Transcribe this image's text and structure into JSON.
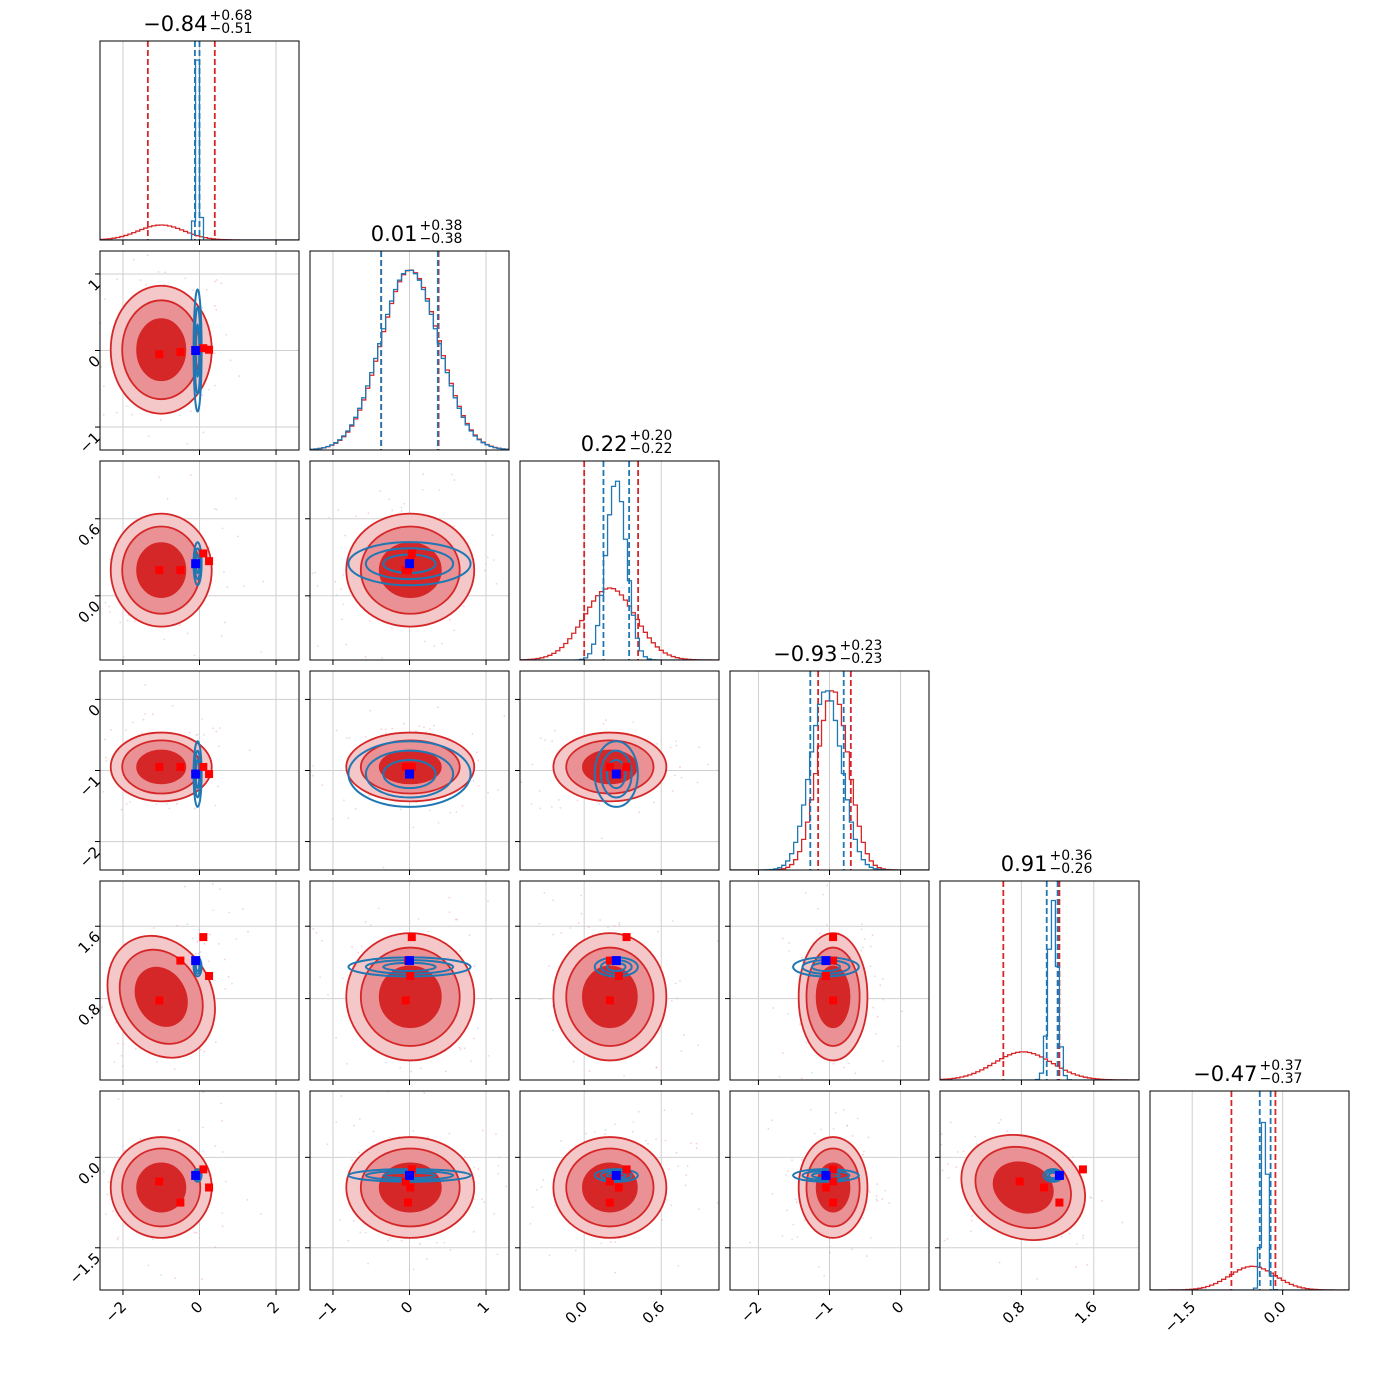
{
  "colors": {
    "red": "#d62728",
    "red_fill": [
      "#f4c7c8",
      "#e99194",
      "#d62728"
    ],
    "blue": "#1f77b4",
    "truth_red": "#ff0000",
    "truth_blue": "#0000ff",
    "grid": "#cfcfcf"
  },
  "chart_data": {
    "type": "corner",
    "n_params": 6,
    "titles": [
      {
        "value": "−0.84",
        "plus": "+0.68",
        "minus": "−0.51"
      },
      {
        "value": "0.01",
        "plus": "+0.38",
        "minus": "−0.38"
      },
      {
        "value": "0.22",
        "plus": "+0.20",
        "minus": "−0.22"
      },
      {
        "value": "−0.93",
        "plus": "+0.23",
        "minus": "−0.23"
      },
      {
        "value": "0.91",
        "plus": "+0.36",
        "minus": "−0.26"
      },
      {
        "value": "−0.47",
        "plus": "+0.37",
        "minus": "−0.37"
      }
    ],
    "ranges": [
      [
        -2.6,
        2.6
      ],
      [
        -1.3,
        1.3
      ],
      [
        -0.5,
        1.05
      ],
      [
        -2.4,
        0.4
      ],
      [
        -0.1,
        2.1
      ],
      [
        -2.2,
        1.1
      ]
    ],
    "ticks": [
      {
        "values": [
          -2,
          0,
          2
        ],
        "labels": [
          "−2",
          "0",
          "2"
        ]
      },
      {
        "values": [
          -1,
          0,
          1
        ],
        "labels": [
          "−1",
          "0",
          "1"
        ]
      },
      {
        "values": [
          0.0,
          0.6
        ],
        "labels": [
          "0.0",
          "0.6"
        ]
      },
      {
        "values": [
          -2,
          -1,
          0
        ],
        "labels": [
          "−2",
          "−1",
          "0"
        ]
      },
      {
        "values": [
          0.8,
          1.6
        ],
        "labels": [
          "0.8",
          "1.6"
        ]
      },
      {
        "values": [
          -1.5,
          0.0
        ],
        "labels": [
          "−1.5",
          "0.0"
        ]
      }
    ],
    "red_posterior": {
      "mean": [
        -1.0,
        0.01,
        0.2,
        -0.95,
        0.82,
        -0.5
      ],
      "sd": [
        0.6,
        0.38,
        0.2,
        0.22,
        0.32,
        0.38
      ],
      "quantiles": [
        [
          -1.35,
          0.4
        ],
        [
          -0.37,
          0.38
        ],
        [
          0.0,
          0.42
        ],
        [
          -1.16,
          -0.7
        ],
        [
          0.6,
          1.22
        ],
        [
          -0.85,
          -0.12
        ]
      ],
      "correlation_pairs": [
        {
          "i": 4,
          "j": 0,
          "rho": 0.45
        },
        {
          "i": 5,
          "j": 4,
          "rho": -0.35
        }
      ]
    },
    "blue_posterior": {
      "mean": [
        -0.05,
        0.0,
        0.25,
        -1.05,
        1.15,
        -0.3
      ],
      "sd": [
        0.05,
        0.38,
        0.08,
        0.22,
        0.05,
        0.05
      ],
      "quantiles": [
        [
          -0.12,
          0.0
        ],
        [
          -0.37,
          0.37
        ],
        [
          0.15,
          0.35
        ],
        [
          -1.27,
          -0.8
        ],
        [
          1.08,
          1.2
        ],
        [
          -0.38,
          -0.2
        ]
      ]
    },
    "truth_blue": [
      -0.1,
      0.0,
      0.25,
      -1.05,
      1.22,
      -0.3
    ],
    "truth_red": [
      [
        -1.05,
        -0.05,
        0.2,
        -0.95,
        0.78,
        -0.4
      ],
      [
        -0.5,
        -0.02,
        0.2,
        -0.95,
        1.22,
        -0.75
      ],
      [
        0.1,
        0.03,
        0.33,
        -0.95,
        1.48,
        -0.2
      ],
      [
        0.25,
        0.01,
        0.27,
        -1.05,
        1.05,
        -0.5
      ]
    ]
  }
}
